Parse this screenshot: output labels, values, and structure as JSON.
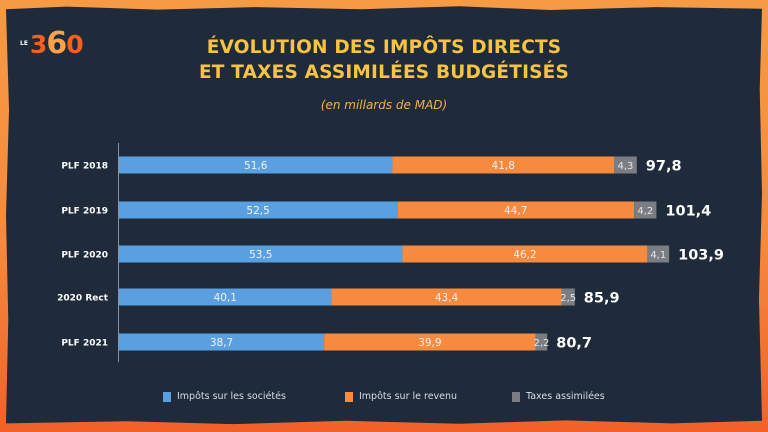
{
  "logo": {
    "prefix": "LE",
    "d3": "3",
    "d6": "6",
    "d0": "0"
  },
  "colors": {
    "background": "#1f2a3a",
    "frame": "#f58a3c",
    "title": "#f7c343",
    "series_societes": "#5aa0e0",
    "series_revenu": "#f68a3e",
    "series_taxes": "#7a7d82"
  },
  "chart_data": {
    "type": "bar",
    "orientation": "horizontal",
    "stacked": true,
    "title": "ÉVOLUTION DES IMPÔTS DIRECTS ET TAXES ASSIMILÉES BUDGÉTISÉS",
    "title_lines": [
      "ÉVOLUTION DES IMPÔTS DIRECTS",
      "ET TAXES ASSIMILÉES BUDGÉTISÉS"
    ],
    "subtitle": "(en millards de MAD)",
    "xlabel": "",
    "ylabel": "",
    "xlim": [
      0,
      110
    ],
    "grid": false,
    "legend_position": "bottom",
    "categories": [
      "PLF 2018",
      "PLF 2019",
      "PLF 2020",
      "2020 Rect",
      "PLF 2021"
    ],
    "series": [
      {
        "name": "Impôts sur les sociétés",
        "values": [
          51.6,
          52.5,
          53.5,
          40.1,
          38.7
        ],
        "labels": [
          "51,6",
          "52,5",
          "53,5",
          "40,1",
          "38,7"
        ]
      },
      {
        "name": "Impôts sur le revenu",
        "values": [
          41.8,
          44.7,
          46.2,
          43.4,
          39.9
        ],
        "labels": [
          "41,8",
          "44,7",
          "46,2",
          "43,4",
          "39,9"
        ]
      },
      {
        "name": "Taxes assimilées",
        "values": [
          4.3,
          4.2,
          4.1,
          2.5,
          2.2
        ],
        "labels": [
          "4,3",
          "4,2",
          "4,1",
          "2,5",
          "2,2"
        ]
      }
    ],
    "totals": [
      97.8,
      101.4,
      103.9,
      85.9,
      80.7
    ],
    "total_labels": [
      "97,8",
      "101,4",
      "103,9",
      "85,9",
      "80,7"
    ]
  }
}
